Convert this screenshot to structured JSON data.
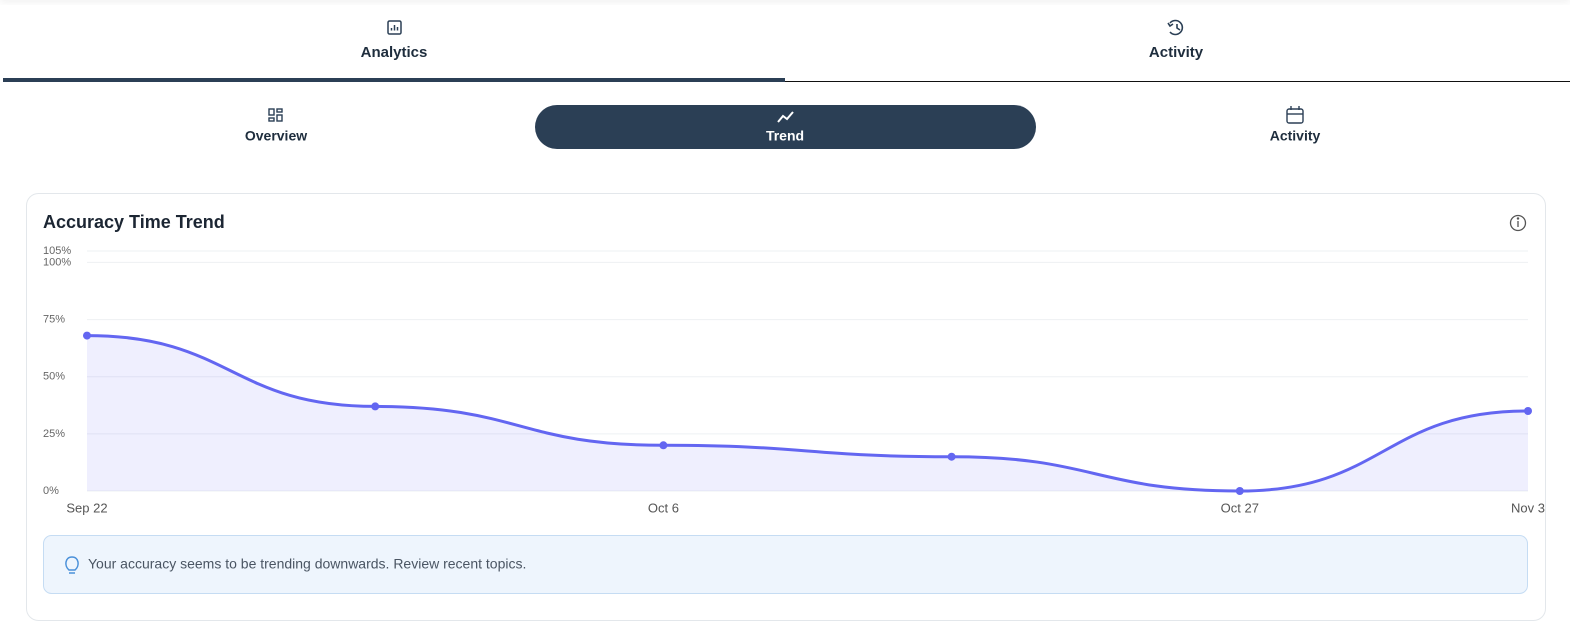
{
  "tabs": [
    "Analytics",
    "Activity"
  ],
  "subtabs": [
    "Overview",
    "Trend",
    "Activity"
  ],
  "chart_data": {
    "type": "line",
    "title": "Accuracy Time Trend",
    "categories": [
      "Sep 22",
      null,
      "Oct 6",
      null,
      "Oct 27",
      "Nov 3"
    ],
    "values": [
      68,
      37,
      20,
      15,
      0,
      35
    ],
    "color": "#6366f1",
    "area": true,
    "ylim": [
      0,
      105
    ],
    "yticks": [
      {
        "value": 0,
        "label": "0%"
      },
      {
        "value": 25,
        "label": "25%"
      },
      {
        "value": 50,
        "label": "50%"
      },
      {
        "value": 75,
        "label": "75%"
      },
      {
        "value": 100,
        "label": "100%"
      },
      {
        "value": 105,
        "label": "105%"
      }
    ],
    "grid": true
  },
  "tip": "Your accuracy seems to be trending downwards. Review recent topics."
}
